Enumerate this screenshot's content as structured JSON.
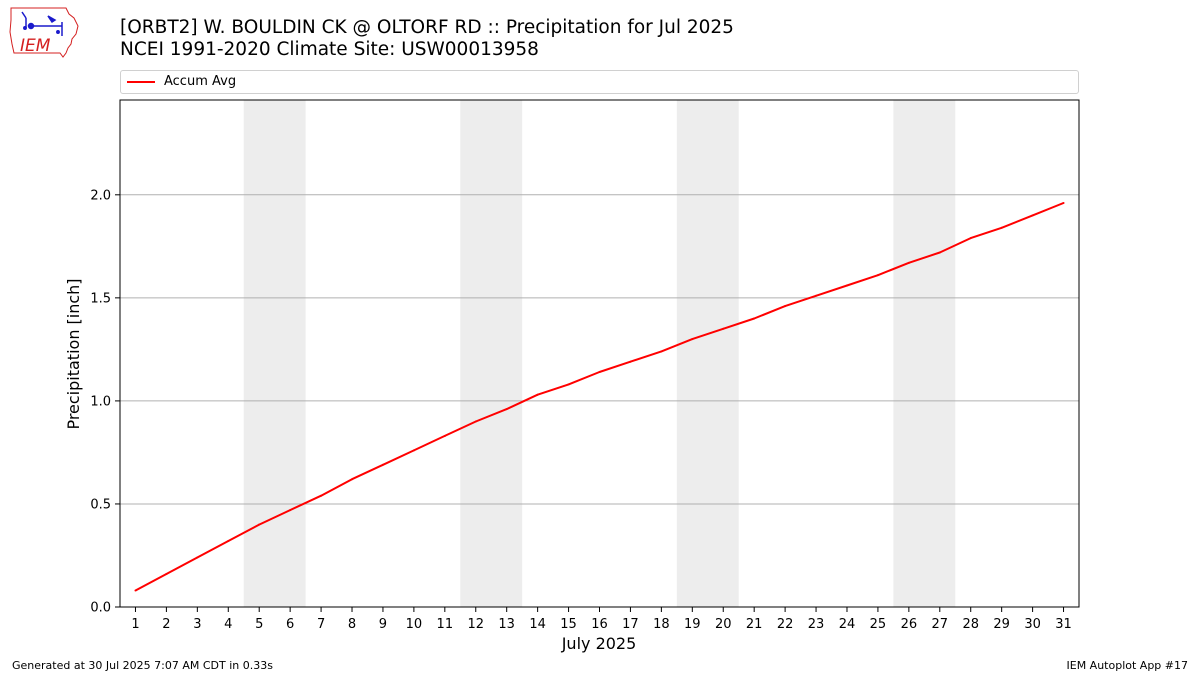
{
  "header": {
    "title_line1": "[ORBT2] W. BOULDIN CK @ OLTORF RD :: Precipitation for Jul 2025",
    "title_line2": "NCEI 1991-2020 Climate Site: USW00013958",
    "logo_text": "IEM"
  },
  "footer": {
    "generated": "Generated at 30 Jul 2025 7:07 AM CDT in 0.33s",
    "app": "IEM Autoplot App #17"
  },
  "colors": {
    "line": "#ff0000",
    "weekend_band": "#ededed",
    "grid": "#b0b0b0",
    "logo_red": "#d42020",
    "logo_blue": "#1a1acc"
  },
  "chart_data": {
    "type": "line",
    "xlabel": "July 2025",
    "ylabel": "Precipitation [inch]",
    "x": [
      1,
      2,
      3,
      4,
      5,
      6,
      7,
      8,
      9,
      10,
      11,
      12,
      13,
      14,
      15,
      16,
      17,
      18,
      19,
      20,
      21,
      22,
      23,
      24,
      25,
      26,
      27,
      28,
      29,
      30,
      31
    ],
    "xlim": [
      0.5,
      31.5
    ],
    "ylim": [
      0,
      2.46
    ],
    "yticks": [
      0.0,
      0.5,
      1.0,
      1.5,
      2.0
    ],
    "ytick_labels": [
      "0.0",
      "0.5",
      "1.0",
      "1.5",
      "2.0"
    ],
    "grid": "horizontal",
    "legend": "top",
    "weekend_bands": [
      [
        5,
        6
      ],
      [
        12,
        13
      ],
      [
        19,
        20
      ],
      [
        26,
        27
      ]
    ],
    "series": [
      {
        "name": "Accum Avg",
        "color": "#ff0000",
        "values": [
          0.08,
          0.16,
          0.24,
          0.32,
          0.4,
          0.47,
          0.54,
          0.62,
          0.69,
          0.76,
          0.83,
          0.9,
          0.96,
          1.03,
          1.08,
          1.14,
          1.19,
          1.24,
          1.3,
          1.35,
          1.4,
          1.46,
          1.51,
          1.56,
          1.61,
          1.67,
          1.72,
          1.79,
          1.84,
          1.9,
          1.96
        ]
      }
    ]
  }
}
